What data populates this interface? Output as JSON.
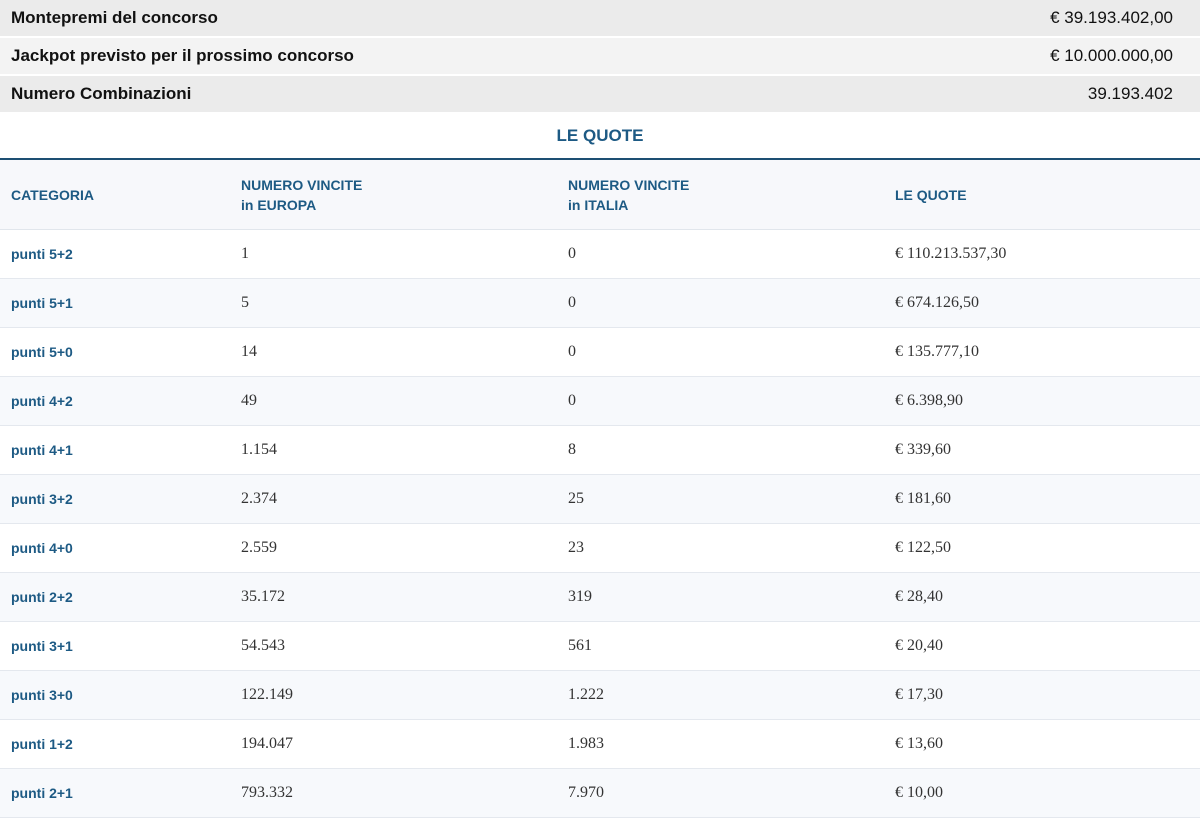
{
  "summary": [
    {
      "label": "Montepremi del concorso",
      "value": "€ 39.193.402,00"
    },
    {
      "label": "Jackpot previsto per il prossimo concorso",
      "value": "€ 10.000.000,00"
    },
    {
      "label": "Numero Combinazioni",
      "value": "39.193.402"
    }
  ],
  "section_title": "LE QUOTE",
  "headers": {
    "categoria": "CATEGORIA",
    "europa_line1": "NUMERO VINCITE",
    "europa_line2": "in EUROPA",
    "italia_line1": "NUMERO VINCITE",
    "italia_line2": "in ITALIA",
    "quote": "LE QUOTE"
  },
  "rows": [
    {
      "categoria": "punti 5+2",
      "europa": "1",
      "italia": "0",
      "quota": "€ 110.213.537,30"
    },
    {
      "categoria": "punti 5+1",
      "europa": "5",
      "italia": "0",
      "quota": "€ 674.126,50"
    },
    {
      "categoria": "punti 5+0",
      "europa": "14",
      "italia": "0",
      "quota": "€ 135.777,10"
    },
    {
      "categoria": "punti 4+2",
      "europa": "49",
      "italia": "0",
      "quota": "€ 6.398,90"
    },
    {
      "categoria": "punti 4+1",
      "europa": "1.154",
      "italia": "8",
      "quota": "€ 339,60"
    },
    {
      "categoria": "punti 3+2",
      "europa": "2.374",
      "italia": "25",
      "quota": "€ 181,60"
    },
    {
      "categoria": "punti 4+0",
      "europa": "2.559",
      "italia": "23",
      "quota": "€ 122,50"
    },
    {
      "categoria": "punti 2+2",
      "europa": "35.172",
      "italia": "319",
      "quota": "€ 28,40"
    },
    {
      "categoria": "punti 3+1",
      "europa": "54.543",
      "italia": "561",
      "quota": "€ 20,40"
    },
    {
      "categoria": "punti 3+0",
      "europa": "122.149",
      "italia": "1.222",
      "quota": "€ 17,30"
    },
    {
      "categoria": "punti 1+2",
      "europa": "194.047",
      "italia": "1.983",
      "quota": "€ 13,60"
    },
    {
      "categoria": "punti 2+1",
      "europa": "793.332",
      "italia": "7.970",
      "quota": "€ 10,00"
    }
  ]
}
